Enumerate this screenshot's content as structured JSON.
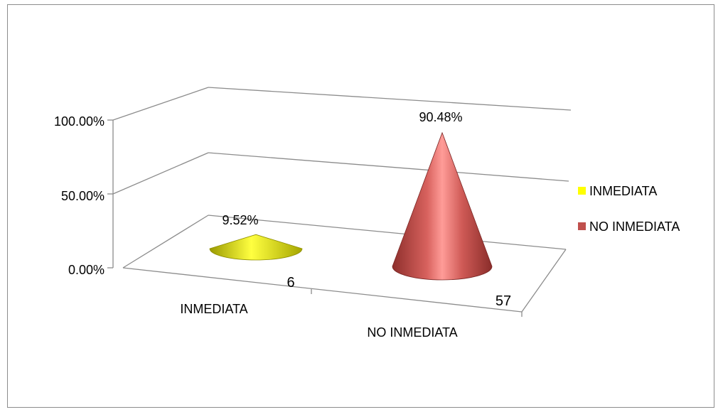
{
  "chart_data": {
    "type": "bar",
    "shape": "cone-3d",
    "title": "",
    "xlabel": "",
    "ylabel": "",
    "ylim": [
      0,
      100
    ],
    "y_ticks": [
      "0.00%",
      "50.00%",
      "100.00%"
    ],
    "grid": true,
    "legend_position": "right",
    "categories": [
      "INMEDIATA",
      "NO INMEDIATA"
    ],
    "series": [
      {
        "name": "INMEDIATA",
        "color": "#ffff00",
        "values": [
          9.52,
          null
        ]
      },
      {
        "name": "NO INMEDIATA",
        "color": "#c0504d",
        "values": [
          null,
          90.48
        ]
      }
    ],
    "data_labels": [
      "9.52%",
      "90.48%"
    ],
    "count_labels": [
      "6",
      "57"
    ]
  }
}
